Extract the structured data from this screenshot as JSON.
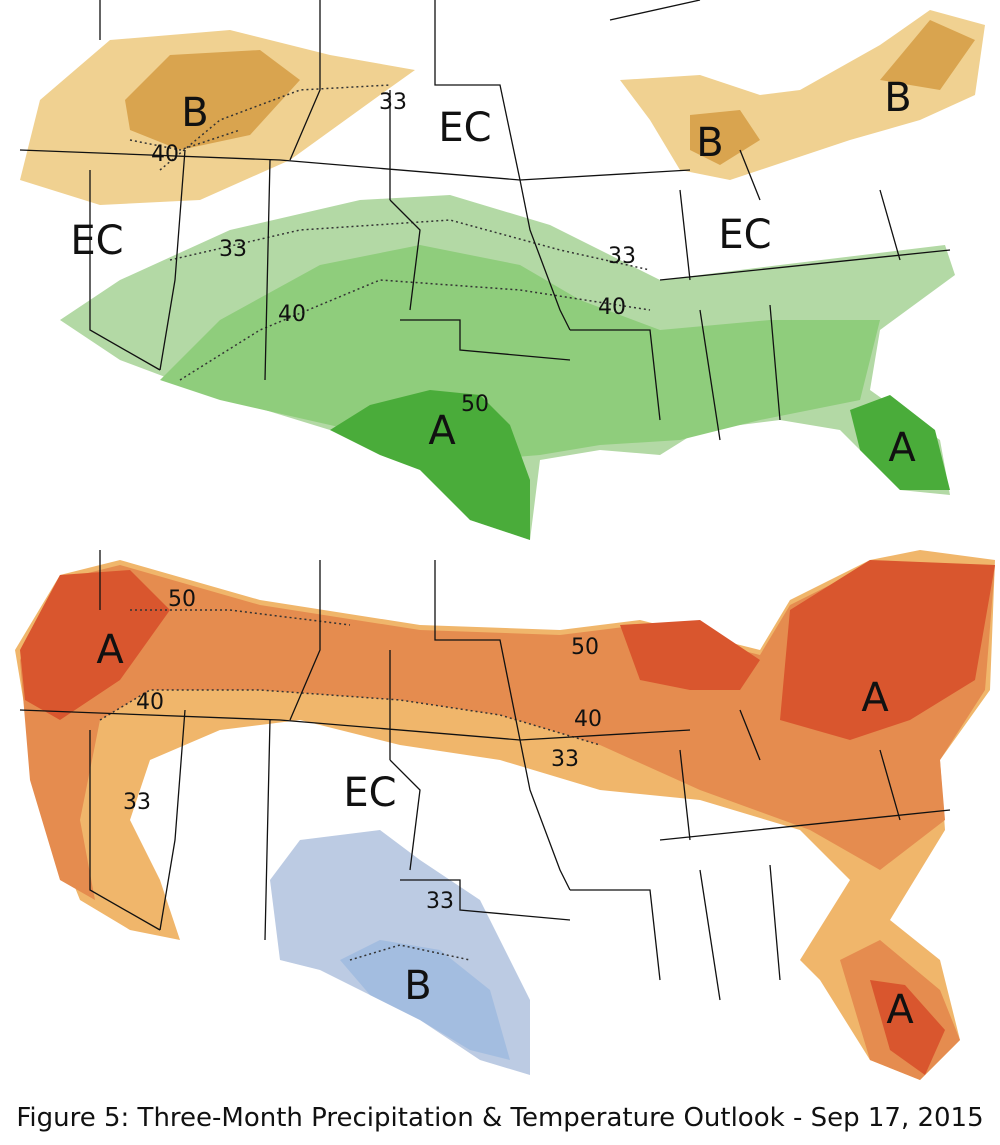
{
  "precipitation_map": {
    "labels": [
      "B",
      "33",
      "EC",
      "40",
      "B",
      "B",
      "EC",
      "33",
      "EC",
      "33",
      "40",
      "40",
      "50",
      "A",
      "A"
    ]
  },
  "temperature_map": {
    "labels": [
      "50",
      "A",
      "40",
      "50",
      "40",
      "33",
      "A",
      "EC",
      "33",
      "33",
      "B",
      "A"
    ]
  },
  "caption": "Figure 5: Three-Month Precipitation & Temperature Outlook - Sep 17, 2015"
}
